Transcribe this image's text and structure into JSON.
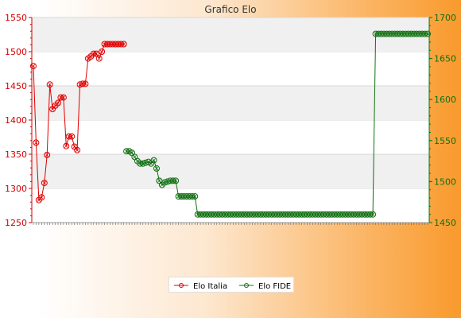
{
  "chart_data": {
    "type": "line",
    "title": "Grafico Elo",
    "y_left": {
      "min": 1250,
      "max": 1550,
      "ticks": [
        1250,
        1300,
        1350,
        1400,
        1450,
        1500,
        1550
      ],
      "color": "#d40000"
    },
    "y_right": {
      "min": 1450,
      "max": 1700,
      "ticks": [
        1450,
        1500,
        1550,
        1600,
        1650,
        1700
      ],
      "color": "#107010"
    },
    "grid": true,
    "legend_position": "bottom-center",
    "x_count": 145,
    "series": [
      {
        "name": "Elo Italia",
        "axis": "left",
        "color": "#e00000",
        "points": [
          [
            0,
            1479
          ],
          [
            1,
            1367
          ],
          [
            2,
            1283
          ],
          [
            3,
            1287
          ],
          [
            4,
            1308
          ],
          [
            5,
            1349
          ],
          [
            6,
            1452
          ],
          [
            7,
            1416
          ],
          [
            8,
            1421
          ],
          [
            9,
            1425
          ],
          [
            10,
            1433
          ],
          [
            11,
            1433
          ],
          [
            12,
            1362
          ],
          [
            13,
            1376
          ],
          [
            14,
            1376
          ],
          [
            15,
            1361
          ],
          [
            16,
            1356
          ],
          [
            17,
            1452
          ],
          [
            18,
            1453
          ],
          [
            19,
            1453
          ],
          [
            20,
            1490
          ],
          [
            21,
            1493
          ],
          [
            22,
            1497
          ],
          [
            23,
            1497
          ],
          [
            24,
            1490
          ],
          [
            25,
            1500
          ],
          [
            26,
            1511
          ],
          [
            27,
            1511
          ],
          [
            28,
            1511
          ],
          [
            29,
            1511
          ],
          [
            30,
            1511
          ],
          [
            31,
            1511
          ],
          [
            32,
            1511
          ],
          [
            33,
            1511
          ]
        ]
      },
      {
        "name": "Elo FIDE",
        "axis": "right",
        "color": "#107010",
        "points": [
          [
            34,
            1537
          ],
          [
            35,
            1537
          ],
          [
            36,
            1535
          ],
          [
            37,
            1530
          ],
          [
            38,
            1525
          ],
          [
            39,
            1522
          ],
          [
            40,
            1522
          ],
          [
            41,
            1523
          ],
          [
            42,
            1524
          ],
          [
            43,
            1522
          ],
          [
            44,
            1526
          ],
          [
            45,
            1516
          ],
          [
            46,
            1501
          ],
          [
            47,
            1496
          ],
          [
            48,
            1499
          ],
          [
            49,
            1500
          ],
          [
            50,
            1501
          ],
          [
            51,
            1501
          ],
          [
            52,
            1501
          ],
          [
            53,
            1482
          ],
          [
            54,
            1482
          ],
          [
            55,
            1482
          ],
          [
            56,
            1482
          ],
          [
            57,
            1482
          ],
          [
            58,
            1482
          ],
          [
            59,
            1482
          ],
          [
            60,
            1460
          ],
          [
            61,
            1460
          ],
          [
            62,
            1460
          ],
          [
            63,
            1460
          ],
          [
            64,
            1460
          ],
          [
            65,
            1460
          ],
          [
            66,
            1460
          ],
          [
            67,
            1460
          ],
          [
            68,
            1460
          ],
          [
            69,
            1460
          ],
          [
            70,
            1460
          ],
          [
            71,
            1460
          ],
          [
            72,
            1460
          ],
          [
            73,
            1460
          ],
          [
            74,
            1460
          ],
          [
            75,
            1460
          ],
          [
            76,
            1460
          ],
          [
            77,
            1460
          ],
          [
            78,
            1460
          ],
          [
            79,
            1460
          ],
          [
            80,
            1460
          ],
          [
            81,
            1460
          ],
          [
            82,
            1460
          ],
          [
            83,
            1460
          ],
          [
            84,
            1460
          ],
          [
            85,
            1460
          ],
          [
            86,
            1460
          ],
          [
            87,
            1460
          ],
          [
            88,
            1460
          ],
          [
            89,
            1460
          ],
          [
            90,
            1460
          ],
          [
            91,
            1460
          ],
          [
            92,
            1460
          ],
          [
            93,
            1460
          ],
          [
            94,
            1460
          ],
          [
            95,
            1460
          ],
          [
            96,
            1460
          ],
          [
            97,
            1460
          ],
          [
            98,
            1460
          ],
          [
            99,
            1460
          ],
          [
            100,
            1460
          ],
          [
            101,
            1460
          ],
          [
            102,
            1460
          ],
          [
            103,
            1460
          ],
          [
            104,
            1460
          ],
          [
            105,
            1460
          ],
          [
            106,
            1460
          ],
          [
            107,
            1460
          ],
          [
            108,
            1460
          ],
          [
            109,
            1460
          ],
          [
            110,
            1460
          ],
          [
            111,
            1460
          ],
          [
            112,
            1460
          ],
          [
            113,
            1460
          ],
          [
            114,
            1460
          ],
          [
            115,
            1460
          ],
          [
            116,
            1460
          ],
          [
            117,
            1460
          ],
          [
            118,
            1460
          ],
          [
            119,
            1460
          ],
          [
            120,
            1460
          ],
          [
            121,
            1460
          ],
          [
            122,
            1460
          ],
          [
            123,
            1460
          ],
          [
            124,
            1460
          ],
          [
            125,
            1680
          ],
          [
            126,
            1680
          ],
          [
            127,
            1680
          ],
          [
            128,
            1680
          ],
          [
            129,
            1680
          ],
          [
            130,
            1680
          ],
          [
            131,
            1680
          ],
          [
            132,
            1680
          ],
          [
            133,
            1680
          ],
          [
            134,
            1680
          ],
          [
            135,
            1680
          ],
          [
            136,
            1680
          ],
          [
            137,
            1680
          ],
          [
            138,
            1680
          ],
          [
            139,
            1680
          ],
          [
            140,
            1680
          ],
          [
            141,
            1680
          ],
          [
            142,
            1680
          ],
          [
            143,
            1680
          ],
          [
            144,
            1680
          ]
        ]
      }
    ]
  }
}
